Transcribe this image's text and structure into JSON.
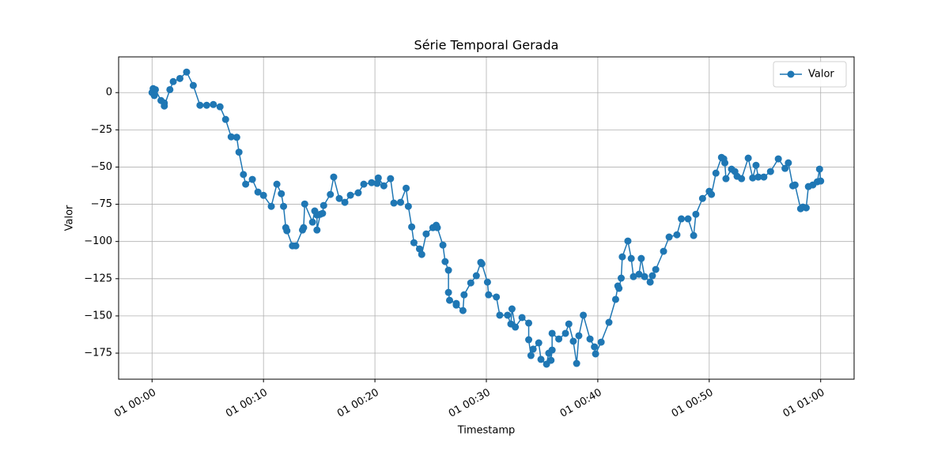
{
  "chart_data": {
    "type": "line",
    "title": "Série Temporal Gerada",
    "x_label": "Timestamp",
    "y_label": "Valor",
    "x": [
      0,
      0.1,
      0.2,
      0.3,
      0.8,
      1.1,
      1.1,
      1.6,
      1.9,
      2.5,
      3.1,
      3.7,
      4.3,
      4.9,
      5.5,
      6.1,
      6.6,
      7.1,
      7.6,
      7.8,
      8.2,
      8.4,
      9.0,
      9.5,
      10.0,
      10.7,
      11.2,
      11.6,
      11.8,
      12.0,
      12.1,
      12.6,
      12.9,
      13.5,
      13.6,
      13.7,
      14.4,
      14.6,
      14.8,
      14.8,
      15.1,
      15.3,
      15.4,
      16.0,
      16.3,
      16.8,
      17.3,
      17.8,
      18.5,
      19.0,
      19.7,
      20.2,
      20.3,
      20.8,
      21.4,
      21.7,
      22.3,
      22.8,
      23.0,
      23.3,
      23.5,
      24.0,
      24.2,
      24.6,
      25.2,
      25.5,
      25.6,
      26.1,
      26.3,
      26.6,
      26.6,
      26.7,
      27.3,
      27.3,
      27.9,
      28.0,
      28.6,
      29.1,
      29.5,
      29.6,
      30.1,
      30.2,
      30.9,
      31.2,
      31.9,
      32.2,
      32.3,
      32.6,
      33.2,
      33.8,
      33.8,
      34.0,
      34.2,
      34.7,
      34.9,
      35.4,
      35.6,
      35.8,
      35.9,
      35.9,
      36.5,
      37.1,
      37.4,
      37.8,
      38.1,
      38.3,
      38.7,
      39.3,
      39.7,
      39.8,
      40.3,
      41.0,
      41.6,
      41.8,
      41.9,
      42.1,
      42.2,
      42.7,
      43.0,
      43.2,
      43.7,
      43.9,
      44.2,
      44.7,
      44.9,
      45.2,
      45.9,
      46.4,
      47.1,
      47.5,
      48.1,
      48.6,
      48.8,
      49.4,
      50.0,
      50.2,
      50.6,
      51.1,
      51.3,
      51.4,
      51.5,
      52.0,
      52.3,
      52.5,
      52.9,
      53.5,
      53.9,
      54.2,
      54.4,
      54.9,
      55.5,
      56.2,
      56.8,
      57.1,
      57.5,
      57.7,
      58.2,
      58.4,
      58.7,
      58.9,
      59.3,
      59.7,
      59.9,
      60.0
    ],
    "series": [
      {
        "name": "Valor",
        "color": "#1f77b4",
        "values": [
          0,
          2.7,
          -2,
          2,
          -5.3,
          -7,
          -9,
          2,
          7.4,
          9.5,
          13.8,
          4.8,
          -8.5,
          -8.5,
          -8,
          -9.5,
          -18,
          -29.7,
          -30,
          -40,
          -55,
          -61.5,
          -58.3,
          -66.8,
          -69,
          -76.4,
          -61.5,
          -67.9,
          -76.4,
          -90.7,
          -92.8,
          -102.9,
          -102.9,
          -92.3,
          -90.7,
          -74.8,
          -87,
          -79.5,
          -82.2,
          -92.3,
          -81.7,
          -81.1,
          -75.8,
          -68.4,
          -56.7,
          -71.1,
          -73.7,
          -68.9,
          -67.3,
          -61.5,
          -60.5,
          -61,
          -57.3,
          -62.6,
          -57.8,
          -74.2,
          -73.7,
          -64.2,
          -76.4,
          -90.2,
          -100.8,
          -105,
          -108.7,
          -94.9,
          -90.7,
          -89.1,
          -90.7,
          -102.4,
          -113.5,
          -119.3,
          -134.2,
          -139.5,
          -141.6,
          -142.7,
          -146.4,
          -135.8,
          -127.8,
          -123,
          -114,
          -115,
          -127.3,
          -135.8,
          -137.3,
          -149.5,
          -149.5,
          -155.4,
          -145.3,
          -157.5,
          -151.1,
          -154.8,
          -166,
          -176.6,
          -172.3,
          -168.1,
          -179.2,
          -182.4,
          -175,
          -179.8,
          -172.9,
          -161.7,
          -165.5,
          -161.7,
          -155.4,
          -167,
          -181.9,
          -163.3,
          -149.5,
          -165.5,
          -170.8,
          -175.5,
          -167.6,
          -154.3,
          -138.9,
          -129.9,
          -131.5,
          -124.6,
          -110.3,
          -99.7,
          -111.4,
          -123.6,
          -122,
          -111.4,
          -123.6,
          -127.3,
          -123,
          -118.8,
          -106.6,
          -97,
          -95.5,
          -84.8,
          -84.8,
          -96,
          -81.7,
          -71.1,
          -66.3,
          -68.4,
          -54.1,
          -43.5,
          -44.5,
          -47.2,
          -57.8,
          -51.4,
          -53,
          -56.2,
          -57.8,
          -44,
          -57.3,
          -48.8,
          -56.7,
          -56.7,
          -53,
          -44.5,
          -50.9,
          -47.2,
          -62.6,
          -62,
          -78,
          -76.9,
          -77.4,
          -63.1,
          -62,
          -59.9,
          -51.4,
          -59.4
        ]
      }
    ],
    "xlim": [
      -3,
      63
    ],
    "xticks": [
      {
        "value": 0,
        "label": "01 00:00"
      },
      {
        "value": 10,
        "label": "01 00:10"
      },
      {
        "value": 20,
        "label": "01 00:20"
      },
      {
        "value": 30,
        "label": "01 00:30"
      },
      {
        "value": 40,
        "label": "01 00:40"
      },
      {
        "value": 50,
        "label": "01 00:50"
      },
      {
        "value": 60,
        "label": "01 01:00"
      }
    ],
    "ylim": [
      -192.5,
      24
    ],
    "yticks": [
      0,
      {
        "value": -25,
        "label": "−25"
      },
      {
        "value": -50,
        "label": "−50"
      },
      {
        "value": -75,
        "label": "−75"
      },
      {
        "value": -100,
        "label": "−100"
      },
      {
        "value": -125,
        "label": "−125"
      },
      {
        "value": -150,
        "label": "−150"
      },
      {
        "value": -175,
        "label": "−175"
      }
    ],
    "grid": true,
    "legend": "upper right"
  }
}
